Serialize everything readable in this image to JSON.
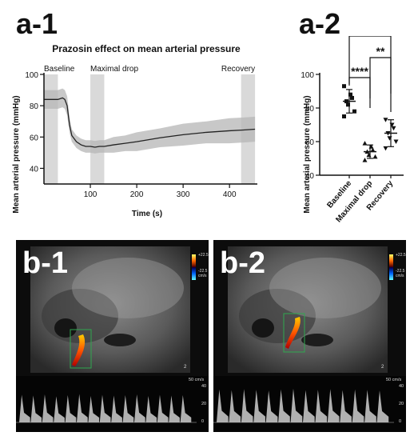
{
  "panels": {
    "a1_tag": "a-1",
    "a2_tag": "a-2",
    "b1_tag": "b-1",
    "b2_tag": "b-2"
  },
  "chart_data": [
    {
      "type": "line",
      "title": "Prazosin effect on mean arterial pressure",
      "xlabel": "Time (s)",
      "ylabel": "Mean arterial pressure (mmHg)",
      "xlim": [
        0,
        460
      ],
      "ylim": [
        30,
        100
      ],
      "x_ticks": [
        "100",
        "200",
        "300",
        "400"
      ],
      "y_ticks": [
        "40",
        "60",
        "80",
        "100"
      ],
      "phases": [
        {
          "label": "Baseline",
          "start": 0,
          "end": 30
        },
        {
          "label": "Maximal drop",
          "start": 100,
          "end": 130
        },
        {
          "label": "Recovery",
          "start": 425,
          "end": 455
        }
      ],
      "series": [
        {
          "x": [
            0,
            10,
            20,
            30,
            40,
            45,
            50,
            55,
            60,
            70,
            80,
            90,
            100,
            110,
            120,
            130,
            150,
            175,
            200,
            250,
            300,
            350,
            400,
            430,
            455
          ],
          "y": [
            84,
            84,
            84,
            84,
            85,
            84,
            80,
            68,
            61,
            57,
            55,
            54,
            54,
            53.5,
            54,
            54,
            55,
            56,
            57,
            59.5,
            61.5,
            63,
            64,
            64.5,
            65
          ],
          "error": [
            6,
            6,
            6,
            6,
            6,
            6,
            6,
            5,
            4,
            4,
            4,
            4,
            4,
            4,
            4,
            4,
            5,
            5,
            6,
            6,
            7,
            7,
            8,
            8,
            8
          ]
        }
      ]
    },
    {
      "type": "scatter",
      "ylabel": "Mean arterial pressure (mmHg)",
      "ylim": [
        40,
        100
      ],
      "y_ticks": [
        "40",
        "60",
        "80",
        "100"
      ],
      "categories": [
        "Baseline",
        "Maximal drop",
        "Recovery"
      ],
      "means": [
        84,
        54,
        65
      ],
      "sd": [
        7,
        4,
        8
      ],
      "points": [
        [
          93,
          88,
          86,
          84,
          82,
          78,
          75
        ],
        [
          59,
          57,
          55,
          54,
          52,
          51,
          49
        ],
        [
          73,
          70,
          68,
          65,
          62,
          60,
          56
        ]
      ],
      "significance": [
        {
          "from": 0,
          "to": 2,
          "label": "**"
        },
        {
          "from": 1,
          "to": 2,
          "label": "**"
        },
        {
          "from": 0,
          "to": 1,
          "label": "****"
        }
      ]
    }
  ],
  "ultrasound": [
    {
      "scale_top": "+22.5",
      "scale_bottom": "-22.5",
      "scale_unit": "cm/s",
      "speed_label": "50 cm/s",
      "depth_label": "2",
      "doppler_ticks": [
        "40",
        "20",
        "0"
      ],
      "depth_ticks": [
        "0",
        "1",
        "2"
      ],
      "beats": 15,
      "spectrum_heights": [
        0.72,
        0.7,
        0.73,
        0.68,
        0.71,
        0.74,
        0.69,
        0.72,
        0.7,
        0.71,
        0.73,
        0.69,
        0.72,
        0.7,
        0.71
      ]
    },
    {
      "scale_top": "+22.5",
      "scale_bottom": "-22.5",
      "scale_unit": "cm/s",
      "speed_label": "50 cm/s",
      "depth_label": "2",
      "doppler_ticks": [
        "40",
        "20",
        "0"
      ],
      "depth_ticks": [
        "0",
        "1",
        "2"
      ],
      "beats": 14,
      "spectrum_heights": [
        0.86,
        0.84,
        0.87,
        0.85,
        0.83,
        0.86,
        0.88,
        0.84,
        0.85,
        0.87,
        0.84,
        0.86,
        0.85,
        0.83
      ]
    }
  ]
}
